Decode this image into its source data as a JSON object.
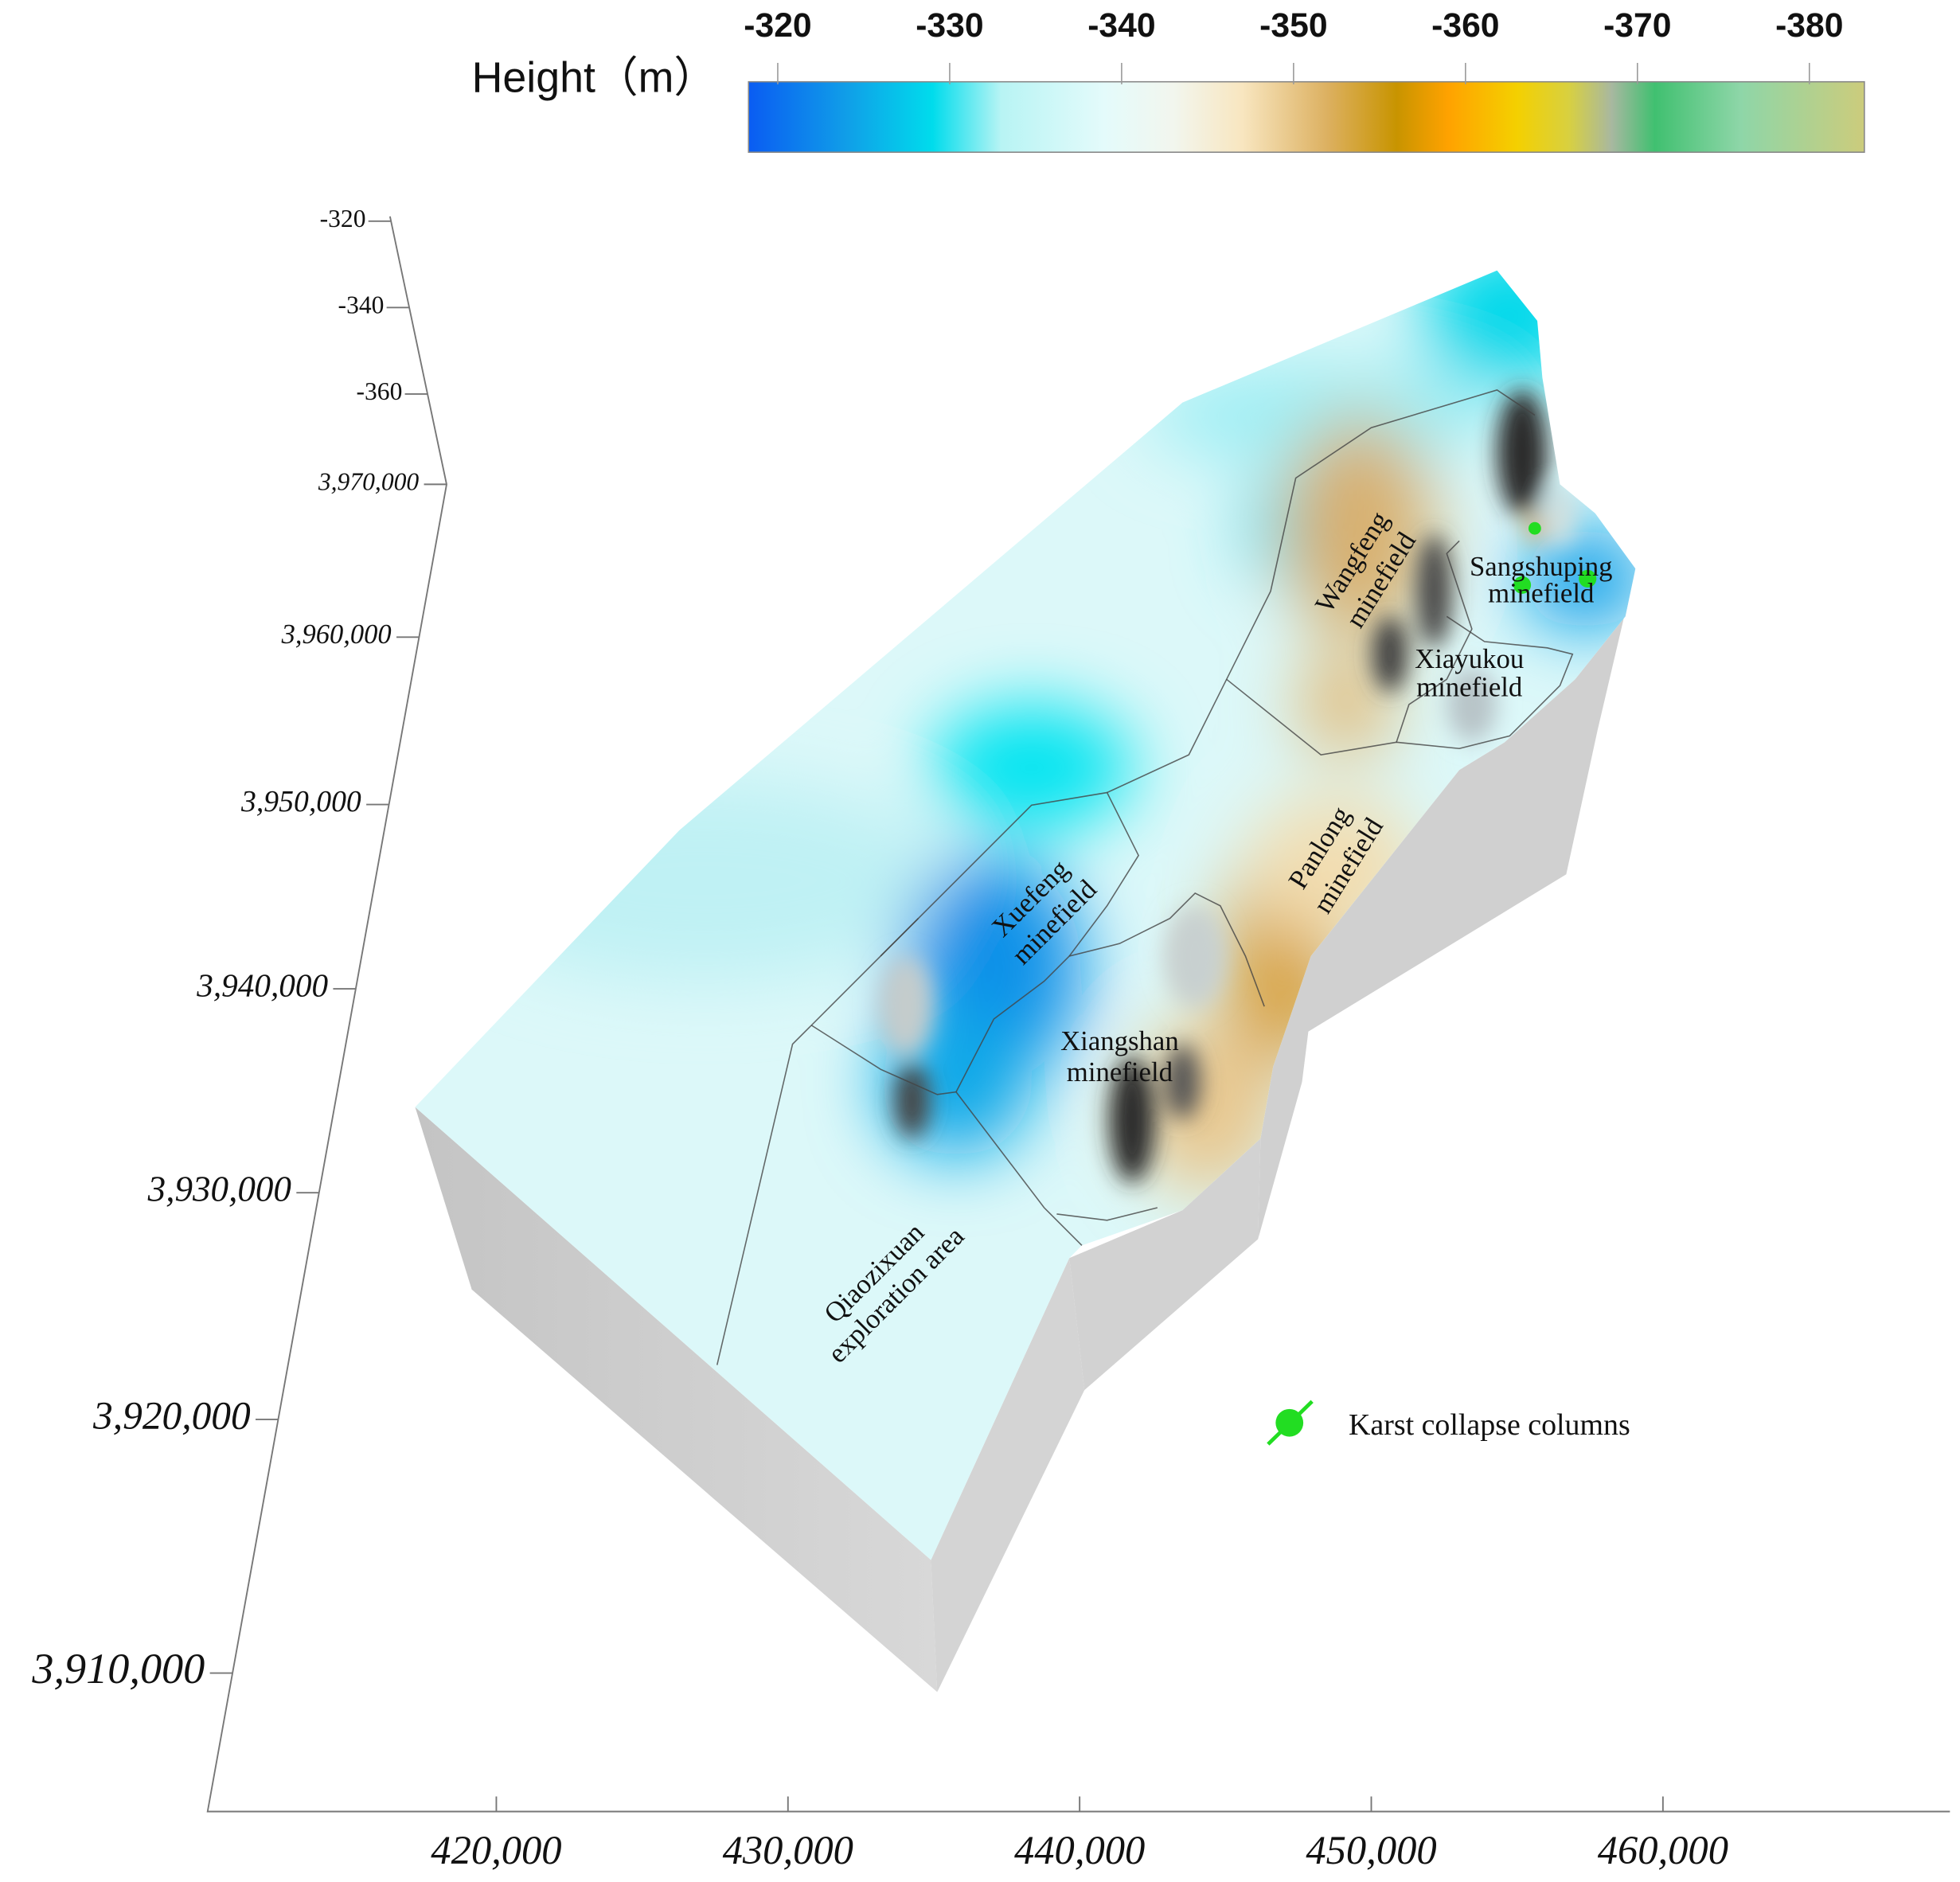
{
  "chart_data": {
    "type": "surface",
    "colorbar": {
      "title": "Height（m）",
      "lim": [
        -318.3,
        -383.2
      ],
      "ticks": [
        -320,
        -330,
        -340,
        -350,
        -360,
        -370,
        -380
      ],
      "colorscale": [
        [
          -318.3,
          "#0a5cf2"
        ],
        [
          -324,
          "#109ee8"
        ],
        [
          -329,
          "#00dcec"
        ],
        [
          -333,
          "#b8f4f4"
        ],
        [
          -339,
          "#e4fbfb"
        ],
        [
          -343,
          "#f2f6ee"
        ],
        [
          -347,
          "#f8e6c0"
        ],
        [
          -352,
          "#dcb060"
        ],
        [
          -356,
          "#c89400"
        ],
        [
          -359,
          "#ffa200"
        ],
        [
          -363,
          "#f4d000"
        ],
        [
          -366,
          "#d8d040"
        ],
        [
          -368.5,
          "#a8b8a0"
        ],
        [
          -371,
          "#40c070"
        ],
        [
          -376,
          "#8ed6a8"
        ],
        [
          -383.2,
          "#cccc7c"
        ]
      ]
    },
    "zlim": [
      -318.9,
      -380.9
    ],
    "zticks": [
      -320,
      -340,
      -360
    ],
    "ylim": [
      3905000,
      3970000
    ],
    "yticks": [
      {
        "value": 3910000,
        "label": "3,910,000"
      },
      {
        "value": 3920000,
        "label": "3,920,000"
      },
      {
        "value": 3930000,
        "label": "3,930,000"
      },
      {
        "value": 3940000,
        "label": "3,940,000"
      },
      {
        "value": 3950000,
        "label": "3,950,000"
      },
      {
        "value": 3960000,
        "label": "3,960,000"
      },
      {
        "value": 3970000,
        "label": "3,970,000"
      }
    ],
    "xlim": [
      410100,
      469840
    ],
    "xticks": [
      {
        "value": 420000,
        "label": "420,000"
      },
      {
        "value": 430000,
        "label": "430,000"
      },
      {
        "value": 440000,
        "label": "440,000"
      },
      {
        "value": 450000,
        "label": "450,000"
      },
      {
        "value": 460000,
        "label": "460,000"
      }
    ],
    "annotations": [
      {
        "lines": [
          "Wangfeng",
          "minefield"
        ]
      },
      {
        "lines": [
          "Sangshuping",
          "minefield"
        ]
      },
      {
        "lines": [
          "Xiayukou",
          "minefield"
        ]
      },
      {
        "lines": [
          "Panlong",
          "minefield"
        ]
      },
      {
        "lines": [
          "Xuefeng",
          "minefield"
        ]
      },
      {
        "lines": [
          "Xiangshan",
          "minefield"
        ]
      },
      {
        "lines": [
          "Qiaozixuan",
          "exploration area"
        ]
      }
    ],
    "legend": {
      "label": "Karst collapse columns",
      "color": "#22dd22"
    }
  }
}
